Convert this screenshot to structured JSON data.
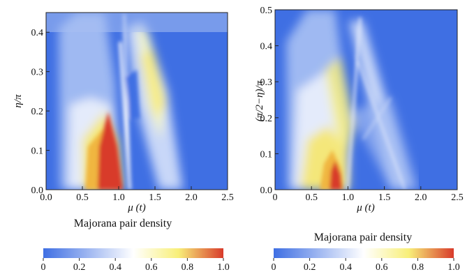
{
  "colormap": [
    "#3f6fe3",
    "#ffffff",
    "#f8ef79",
    "#d83b2b"
  ],
  "chart_data": [
    {
      "type": "heatmap",
      "xlabel": "μ (t)",
      "ylabel": "η/π",
      "xlim": [
        0,
        2.5
      ],
      "ylim": [
        0,
        0.45
      ],
      "xticks": [
        "0.0",
        "0.5",
        "1.0",
        "1.5",
        "2.0",
        "2.5"
      ],
      "xtick_values": [
        0,
        0.5,
        1.0,
        1.5,
        2.0,
        2.5
      ],
      "yticks": [
        "0.0",
        "0.1",
        "0.2",
        "0.3",
        "0.4"
      ],
      "ytick_values": [
        0,
        0.1,
        0.2,
        0.3,
        0.4
      ],
      "colorbar": {
        "title": "Majorana pair density",
        "ticks": [
          "0",
          "0.2",
          "0.4",
          "0.6",
          "0.8",
          "1.0"
        ],
        "range": [
          0,
          1
        ]
      }
    },
    {
      "type": "heatmap",
      "xlabel": "μ (t)",
      "ylabel": "(π/2−η)/π",
      "xlim": [
        0,
        2.5
      ],
      "ylim": [
        0,
        0.5
      ],
      "xticks": [
        "0",
        "0.5",
        "1.0",
        "1.5",
        "2.0",
        "2.5"
      ],
      "xtick_values": [
        0,
        0.5,
        1.0,
        1.5,
        2.0,
        2.5
      ],
      "yticks": [
        "0.0",
        "0.1",
        "0.2",
        "0.3",
        "0.4",
        "0.5"
      ],
      "ytick_values": [
        0,
        0.1,
        0.2,
        0.3,
        0.4,
        0.5
      ],
      "colorbar": {
        "title": "Majorana pair density",
        "ticks": [
          "0",
          "0.2",
          "0.4",
          "0.6",
          "0.8",
          "1.0"
        ],
        "range": [
          0,
          1
        ]
      }
    }
  ]
}
